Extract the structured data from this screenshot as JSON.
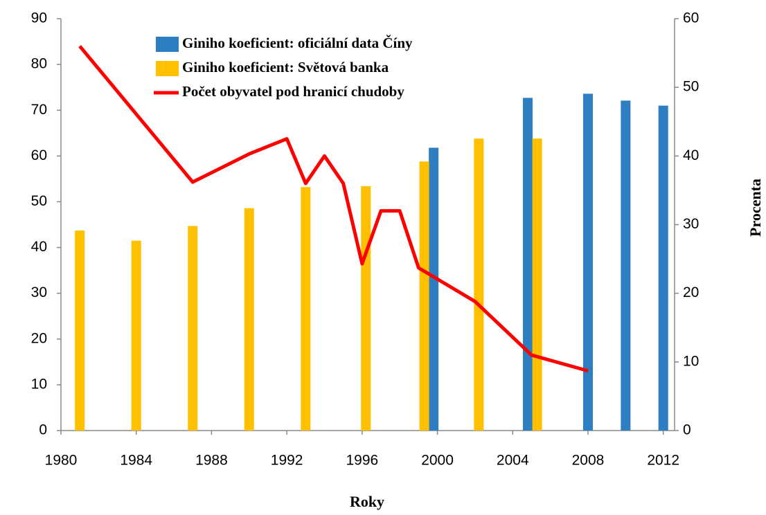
{
  "chart_data": {
    "type": "bar",
    "x_label": "Roky",
    "y2_label": "Procenta",
    "xlim": [
      1980,
      2012.6
    ],
    "xticks": [
      1980,
      1984,
      1988,
      1992,
      1996,
      2000,
      2004,
      2008,
      2012
    ],
    "ylim": [
      0,
      90
    ],
    "yticks": [
      0,
      10,
      20,
      30,
      40,
      50,
      60,
      70,
      80,
      90
    ],
    "y2lim": [
      0,
      60
    ],
    "y2ticks": [
      0,
      10,
      20,
      30,
      40,
      50,
      60
    ],
    "series": [
      {
        "name": "Giniho koeficient: oficiální data Číny",
        "type": "bar",
        "color": "#2e7fc1",
        "x": [
          1999.8,
          2004.8,
          2008,
          2010,
          2012
        ],
        "values": [
          61.8,
          72.7,
          73.6,
          72.1,
          71
        ]
      },
      {
        "name": "Giniho koeficient: Světová banka",
        "type": "bar",
        "color": "#ffc000",
        "x": [
          1981,
          1984,
          1987,
          1990,
          1993,
          1996.2,
          1999.3,
          2002.2,
          2005.3
        ],
        "values": [
          43.7,
          41.5,
          44.7,
          48.6,
          53.2,
          53.4,
          58.8,
          63.8,
          63.8
        ]
      },
      {
        "name": "Počet obyvatel pod hranicí chudoby",
        "type": "line",
        "axis": "y2",
        "color": "#ff0000",
        "x": [
          1981,
          1987,
          1990,
          1992,
          1993,
          1994,
          1995,
          1996,
          1997,
          1998,
          1999,
          2002,
          2005,
          2008
        ],
        "values": [
          56,
          36.2,
          40.3,
          42.5,
          36,
          40,
          36,
          24.3,
          32,
          32,
          23.7,
          18.8,
          11,
          8.7
        ]
      }
    ]
  }
}
